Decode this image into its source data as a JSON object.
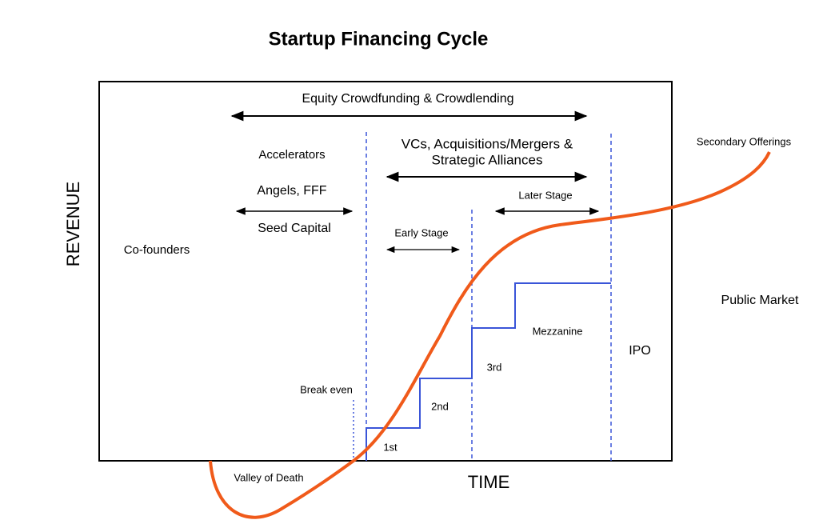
{
  "title": "Startup Financing Cycle",
  "axes": {
    "y": "REVENUE",
    "x": "TIME"
  },
  "labels": {
    "crowdfunding": "Equity Crowdfunding & Crowdlending",
    "vcs_line1": "VCs, Acquisitions/Mergers &",
    "vcs_line2": "Strategic Alliances",
    "accelerators": "Accelerators",
    "angels": "Angels, FFF",
    "seed": "Seed Capital",
    "later_stage": "Later Stage",
    "early_stage": "Early Stage",
    "cofounders": "Co-founders",
    "secondary": "Secondary Offerings",
    "public_market": "Public Market",
    "mezzanine": "Mezzanine",
    "ipo": "IPO",
    "third": "3rd",
    "break_even": "Break even",
    "second": "2nd",
    "first": "1st",
    "valley": "Valley of Death"
  }
}
